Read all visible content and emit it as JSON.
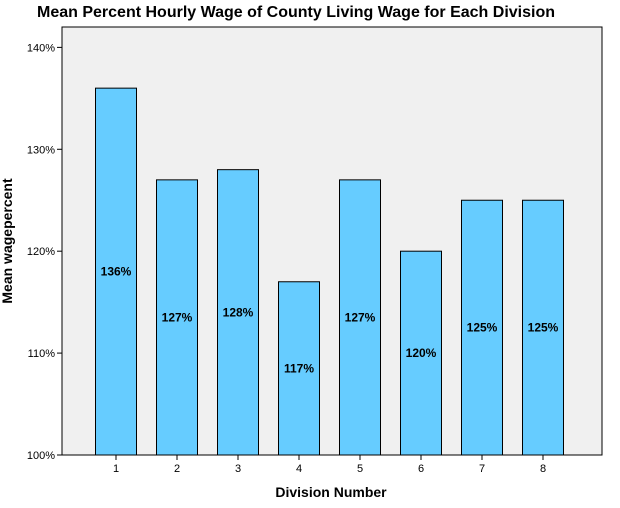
{
  "chart_data": {
    "type": "bar",
    "title": "Mean Percent Hourly Wage of County Living Wage for Each Division",
    "xlabel": "Division Number",
    "ylabel": "Mean wagepercent",
    "categories": [
      "1",
      "2",
      "3",
      "4",
      "5",
      "6",
      "7",
      "8"
    ],
    "values": [
      136,
      127,
      128,
      117,
      127,
      120,
      125,
      125
    ],
    "data_labels": [
      "136%",
      "127%",
      "128%",
      "117%",
      "127%",
      "120%",
      "125%",
      "125%"
    ],
    "ylim": [
      100,
      142
    ],
    "yticks": [
      100,
      110,
      120,
      130,
      140
    ],
    "ytick_labels": [
      "100%",
      "110%",
      "120%",
      "130%",
      "140%"
    ],
    "grid": false,
    "bar_color": "#66CCFF",
    "plot_background": "#F0F0F0"
  }
}
